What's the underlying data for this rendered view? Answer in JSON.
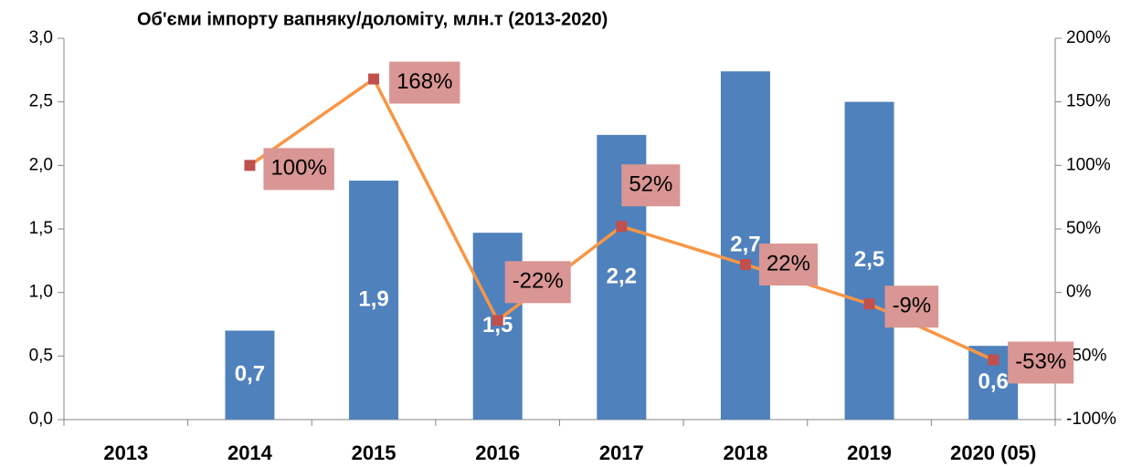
{
  "chart_data": {
    "type": "bar",
    "title": "Об'єми імпорту вапняку/доломіту, млн.т  (2013-2020)",
    "categories": [
      "2013",
      "2014",
      "2015",
      "2016",
      "2017",
      "2018",
      "2019",
      "2020 (05)"
    ],
    "series": [
      {
        "type": "bar",
        "color": "#4f81bd",
        "values": [
          null,
          0.7,
          1.88,
          1.47,
          2.24,
          2.74,
          2.5,
          0.58
        ],
        "value_labels": [
          null,
          "0,7",
          "1,9",
          "1,5",
          "2,2",
          "2,7",
          "2,5",
          "0,6"
        ]
      },
      {
        "type": "line",
        "axis": "y2",
        "color": "#f79646",
        "marker_color": "#c0504d",
        "values": [
          null,
          100,
          168,
          -22,
          52,
          22,
          -9,
          -53
        ],
        "value_labels": [
          null,
          "100%",
          "168%",
          "-22%",
          "52%",
          "22%",
          "-9%",
          "-53%"
        ]
      }
    ],
    "ylim": [
      0,
      3
    ],
    "yticks": [
      {
        "value": 0,
        "label": "0,0"
      },
      {
        "value": 0.5,
        "label": "0,5"
      },
      {
        "value": 1,
        "label": "1,0"
      },
      {
        "value": 1.5,
        "label": "1,5"
      },
      {
        "value": 2,
        "label": "2,0"
      },
      {
        "value": 2.5,
        "label": "2,5"
      },
      {
        "value": 3,
        "label": "3,0"
      }
    ],
    "y2lim": [
      -100,
      200
    ],
    "y2ticks": [
      {
        "value": -100,
        "label": "-100%"
      },
      {
        "value": -50,
        "label": "-50%"
      },
      {
        "value": 0,
        "label": "0%"
      },
      {
        "value": 50,
        "label": "50%"
      },
      {
        "value": 100,
        "label": "100%"
      },
      {
        "value": 150,
        "label": "150%"
      },
      {
        "value": 200,
        "label": "200%"
      }
    ]
  }
}
